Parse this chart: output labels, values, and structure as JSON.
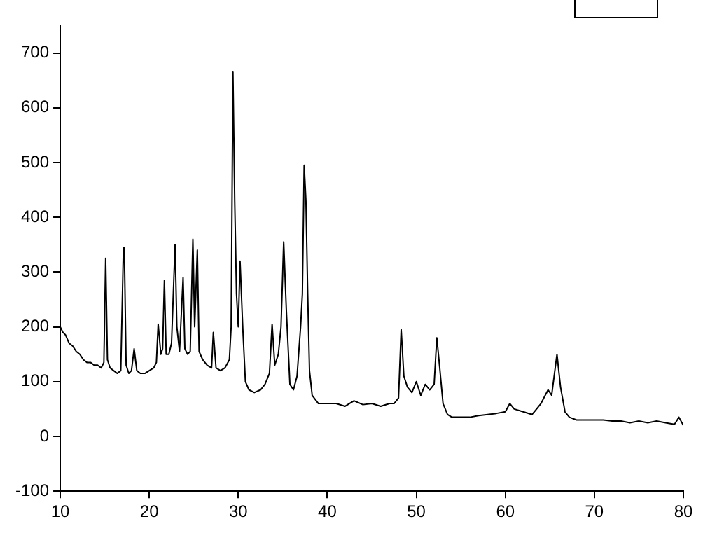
{
  "chart_data": {
    "type": "line",
    "xlim": [
      10,
      80
    ],
    "xticks": [
      10,
      20,
      30,
      40,
      50,
      60,
      70,
      80
    ],
    "ylim": [
      -100,
      750
    ],
    "yticks": [
      -100,
      0,
      100,
      200,
      300,
      400,
      500,
      600,
      700
    ],
    "grid": false,
    "legend": false,
    "marker": "none",
    "line_style": "solid",
    "series": [
      {
        "color": "#000000",
        "x": [
          10,
          10.3,
          10.6,
          11,
          11.4,
          11.8,
          12.2,
          12.6,
          13,
          13.4,
          13.8,
          14.2,
          14.6,
          14.9,
          15.1,
          15.3,
          15.6,
          16,
          16.4,
          16.8,
          17.1,
          17.2,
          17.4,
          17.7,
          18,
          18.3,
          18.6,
          19,
          19.5,
          20,
          20.5,
          20.8,
          21,
          21.3,
          21.5,
          21.7,
          21.9,
          22.2,
          22.5,
          22.9,
          23.1,
          23.4,
          23.8,
          24,
          24.3,
          24.6,
          24.9,
          25.1,
          25.4,
          25.6,
          26,
          26.5,
          27,
          27.2,
          27.5,
          28,
          28.5,
          29,
          29.2,
          29.4,
          29.6,
          29.8,
          30,
          30.2,
          30.5,
          30.8,
          31.2,
          31.8,
          32.5,
          33,
          33.5,
          33.8,
          34.1,
          34.5,
          34.8,
          35.1,
          35.4,
          35.8,
          36.2,
          36.6,
          37,
          37.2,
          37.4,
          37.6,
          37.8,
          38,
          38.3,
          39,
          40,
          41,
          42,
          43,
          44,
          45,
          46,
          47,
          47.5,
          48,
          48.3,
          48.6,
          49,
          49.5,
          50,
          50.5,
          51,
          51.5,
          52,
          52.3,
          52.6,
          53,
          53.5,
          54,
          55,
          56,
          57,
          58,
          59,
          60,
          60.5,
          61,
          62,
          63,
          64,
          64.8,
          65.2,
          65.8,
          66.2,
          66.7,
          67.2,
          68,
          69,
          70,
          71,
          72,
          73,
          74,
          75,
          76,
          77,
          78,
          79,
          79.5,
          80
        ],
        "values": [
          200,
          190,
          185,
          170,
          165,
          155,
          150,
          140,
          135,
          135,
          130,
          130,
          125,
          135,
          325,
          140,
          125,
          120,
          115,
          120,
          345,
          340,
          130,
          115,
          120,
          160,
          120,
          115,
          115,
          120,
          125,
          135,
          205,
          150,
          160,
          285,
          150,
          150,
          170,
          350,
          200,
          155,
          290,
          160,
          150,
          155,
          360,
          200,
          340,
          155,
          140,
          130,
          125,
          190,
          125,
          120,
          125,
          140,
          200,
          665,
          430,
          260,
          200,
          320,
          200,
          100,
          85,
          80,
          85,
          95,
          115,
          205,
          130,
          150,
          200,
          355,
          230,
          95,
          85,
          110,
          200,
          260,
          495,
          430,
          260,
          120,
          75,
          60,
          60,
          60,
          55,
          65,
          58,
          60,
          55,
          60,
          60,
          70,
          195,
          110,
          90,
          80,
          100,
          75,
          95,
          85,
          95,
          180,
          130,
          60,
          40,
          35,
          35,
          35,
          38,
          40,
          42,
          45,
          60,
          50,
          45,
          40,
          60,
          85,
          75,
          150,
          90,
          45,
          35,
          30,
          30,
          30,
          30,
          28,
          28,
          25,
          28,
          25,
          28,
          25,
          22,
          35,
          20
        ]
      }
    ]
  }
}
